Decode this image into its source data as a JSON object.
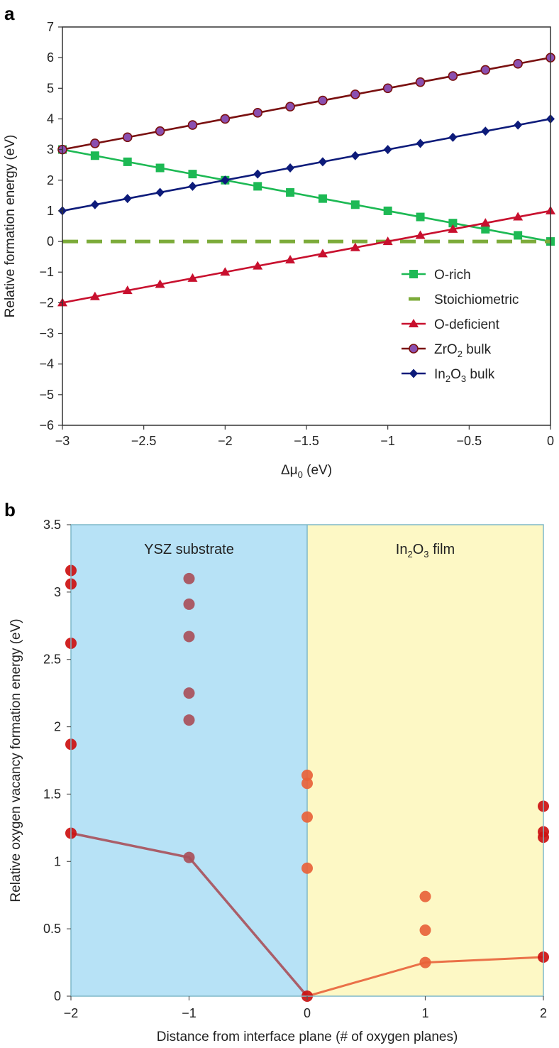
{
  "chart_data": [
    {
      "panel_label": "a",
      "type": "line",
      "xlabel": "Δμ",
      "xlabel_sub": "0",
      "xlabel_unit": " (eV)",
      "ylabel": "Relative formation energy (eV)",
      "xlim": [
        -3,
        0
      ],
      "ylim": [
        -6,
        7
      ],
      "xticks": [
        -3,
        -2.5,
        -2,
        -1.5,
        -1,
        -0.5,
        0
      ],
      "xtick_labels": [
        "−3",
        "−2.5",
        "−2",
        "−1.5",
        "−1",
        "−0.5",
        "0"
      ],
      "yticks": [
        -6,
        -5,
        -4,
        -3,
        -2,
        -1,
        0,
        1,
        2,
        3,
        4,
        5,
        6,
        7
      ],
      "ytick_labels": [
        "−6",
        "−5",
        "−4",
        "−3",
        "−2",
        "−1",
        "0",
        "1",
        "2",
        "3",
        "4",
        "5",
        "6",
        "7"
      ],
      "x": [
        -3,
        -2.8,
        -2.6,
        -2.4,
        -2.2,
        -2,
        -1.8,
        -1.6,
        -1.4,
        -1.2,
        -1,
        -0.8,
        -0.6,
        -0.4,
        -0.2,
        0
      ],
      "legend_position": "lower-right",
      "series": [
        {
          "name": "O-rich",
          "name_sub": "",
          "name_post": "",
          "marker": "square",
          "color": "#1db954",
          "values": [
            3,
            2.8,
            2.6,
            2.4,
            2.2,
            2,
            1.8,
            1.6,
            1.4,
            1.2,
            1,
            0.8,
            0.6,
            0.4,
            0.2,
            0
          ]
        },
        {
          "name": "Stoichiometric",
          "name_sub": "",
          "name_post": "",
          "marker": "none",
          "dashed": true,
          "color": "#7cab3a",
          "values": [
            0,
            0,
            0,
            0,
            0,
            0,
            0,
            0,
            0,
            0,
            0,
            0,
            0,
            0,
            0,
            0
          ]
        },
        {
          "name": "O-deficient",
          "name_sub": "",
          "name_post": "",
          "marker": "triangle",
          "color": "#c8102e",
          "values": [
            -2,
            -1.8,
            -1.6,
            -1.4,
            -1.2,
            -1,
            -0.8,
            -0.6,
            -0.4,
            -0.2,
            0,
            0.2,
            0.4,
            0.6,
            0.8,
            1
          ]
        },
        {
          "name": "ZrO",
          "name_sub": "2",
          "name_post": " bulk",
          "marker": "circle",
          "color": "#7a1010",
          "marker_fill": "#8a4fb0",
          "values": [
            3,
            3.2,
            3.4,
            3.6,
            3.8,
            4,
            4.2,
            4.4,
            4.6,
            4.8,
            5,
            5.2,
            5.4,
            5.6,
            5.8,
            6
          ]
        },
        {
          "name": "In",
          "name_sub": "2",
          "name_mid": "O",
          "name_sub2": "3",
          "name_post": " bulk",
          "marker": "diamond",
          "color": "#0d1b7a",
          "values": [
            1,
            1.2,
            1.4,
            1.6,
            1.8,
            2,
            2.2,
            2.4,
            2.6,
            2.8,
            3,
            3.2,
            3.4,
            3.6,
            3.8,
            4
          ]
        }
      ]
    },
    {
      "panel_label": "b",
      "type": "scatter",
      "xlabel": "Distance from interface plane (# of oxygen planes)",
      "ylabel": "Relative oxygen vacancy formation energy (eV)",
      "xlim": [
        -2,
        2
      ],
      "ylim": [
        0,
        3.5
      ],
      "xticks": [
        -2,
        -1,
        0,
        1,
        2
      ],
      "xtick_labels": [
        "−2",
        "−1",
        "0",
        "1",
        "2"
      ],
      "yticks": [
        0,
        0.5,
        1,
        1.5,
        2,
        2.5,
        3,
        3.5
      ],
      "ytick_labels": [
        "0",
        "0.5",
        "1",
        "1.5",
        "2",
        "2.5",
        "3",
        "3.5"
      ],
      "regions": [
        {
          "name": "YSZ substrate",
          "x_from": -2,
          "x_to": 0,
          "color": "#b7e2f6"
        },
        {
          "name": "In",
          "name_sub": "2",
          "name_mid": "O",
          "name_sub2": "3",
          "name_post": " film",
          "x_from": 0,
          "x_to": 2,
          "color": "#fdf8c5"
        }
      ],
      "points": [
        {
          "x": -2,
          "y": 3.16
        },
        {
          "x": -2,
          "y": 3.06
        },
        {
          "x": -2,
          "y": 2.62
        },
        {
          "x": -2,
          "y": 1.87
        },
        {
          "x": -2,
          "y": 1.21
        },
        {
          "x": -1,
          "y": 3.1
        },
        {
          "x": -1,
          "y": 2.91
        },
        {
          "x": -1,
          "y": 2.67
        },
        {
          "x": -1,
          "y": 2.25
        },
        {
          "x": -1,
          "y": 2.05
        },
        {
          "x": -1,
          "y": 1.03
        },
        {
          "x": 0,
          "y": 1.64
        },
        {
          "x": 0,
          "y": 1.58
        },
        {
          "x": 0,
          "y": 1.33
        },
        {
          "x": 0,
          "y": 0.95
        },
        {
          "x": 0,
          "y": 0
        },
        {
          "x": 1,
          "y": 0.74
        },
        {
          "x": 1,
          "y": 0.49
        },
        {
          "x": 1,
          "y": 0.25
        },
        {
          "x": 2,
          "y": 1.41
        },
        {
          "x": 2,
          "y": 1.22
        },
        {
          "x": 2,
          "y": 1.18
        },
        {
          "x": 2,
          "y": 0.29
        }
      ],
      "min_line": {
        "x": [
          -2,
          -1,
          0,
          1,
          2
        ],
        "y": [
          1.21,
          1.03,
          0,
          0.25,
          0.29
        ]
      },
      "colors": {
        "ysz_point": "#a8505a",
        "film_point": "#e8623a",
        "edge_point": "#cc1111",
        "ysz_line": "#a8505a",
        "film_line": "#e8623a"
      }
    }
  ]
}
